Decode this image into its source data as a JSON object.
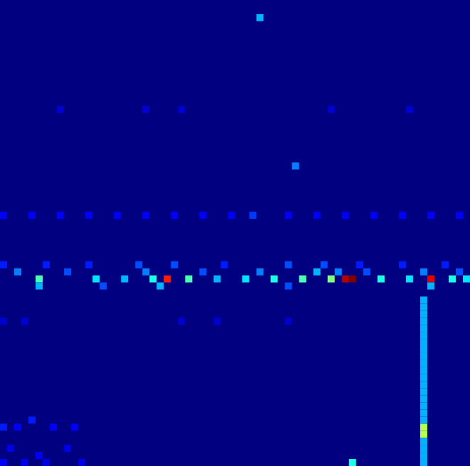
{
  "chart_data": {
    "type": "heatmap",
    "tick_labels": false,
    "xlim": [
      0,
      66
    ],
    "ylim": [
      0,
      66
    ],
    "color_range": [
      0,
      1
    ],
    "cells": [
      [
        5,
        26,
        0.45
      ],
      [
        13,
        26,
        0.35
      ],
      [
        17,
        26,
        0.3
      ],
      [
        21,
        26,
        0.4
      ],
      [
        23,
        26,
        0.85
      ],
      [
        26,
        26,
        0.45
      ],
      [
        30,
        26,
        0.3
      ],
      [
        34,
        26,
        0.35
      ],
      [
        38,
        26,
        0.4
      ],
      [
        42,
        26,
        0.45
      ],
      [
        46,
        26,
        0.5
      ],
      [
        48,
        26,
        0.95
      ],
      [
        49,
        26,
        1.0
      ],
      [
        53,
        26,
        0.4
      ],
      [
        57,
        26,
        0.35
      ],
      [
        60,
        26,
        0.9
      ],
      [
        63,
        26,
        0.4
      ],
      [
        65,
        26,
        0.35
      ],
      [
        2,
        27,
        0.25
      ],
      [
        9,
        27,
        0.2
      ],
      [
        20,
        27,
        0.25
      ],
      [
        28,
        27,
        0.2
      ],
      [
        36,
        27,
        0.25
      ],
      [
        44,
        27,
        0.3
      ],
      [
        47,
        27,
        0.25
      ],
      [
        51,
        27,
        0.2
      ],
      [
        59,
        27,
        0.25
      ],
      [
        64,
        27,
        0.2
      ],
      [
        0,
        28,
        0.15
      ],
      [
        6,
        28,
        0.15
      ],
      [
        12,
        28,
        0.15
      ],
      [
        19,
        28,
        0.2
      ],
      [
        24,
        28,
        0.2
      ],
      [
        31,
        28,
        0.15
      ],
      [
        40,
        28,
        0.2
      ],
      [
        45,
        28,
        0.2
      ],
      [
        50,
        28,
        0.15
      ],
      [
        56,
        28,
        0.15
      ],
      [
        62,
        28,
        0.15
      ],
      [
        5,
        25,
        0.3
      ],
      [
        14,
        25,
        0.2
      ],
      [
        22,
        25,
        0.3
      ],
      [
        40,
        25,
        0.2
      ],
      [
        60,
        25,
        0.3
      ],
      [
        0,
        35,
        0.12
      ],
      [
        4,
        35,
        0.12
      ],
      [
        8,
        35,
        0.12
      ],
      [
        12,
        35,
        0.12
      ],
      [
        16,
        35,
        0.12
      ],
      [
        20,
        35,
        0.12
      ],
      [
        24,
        35,
        0.12
      ],
      [
        28,
        35,
        0.12
      ],
      [
        32,
        35,
        0.12
      ],
      [
        35,
        35,
        0.18
      ],
      [
        40,
        35,
        0.12
      ],
      [
        44,
        35,
        0.12
      ],
      [
        48,
        35,
        0.12
      ],
      [
        52,
        35,
        0.12
      ],
      [
        56,
        35,
        0.12
      ],
      [
        60,
        35,
        0.12
      ],
      [
        64,
        35,
        0.12
      ],
      [
        36,
        63,
        0.3
      ],
      [
        41,
        42,
        0.25
      ],
      [
        59,
        0,
        0.3
      ],
      [
        59,
        1,
        0.3
      ],
      [
        59,
        2,
        0.3
      ],
      [
        59,
        3,
        0.3
      ],
      [
        59,
        4,
        0.55
      ],
      [
        59,
        5,
        0.55
      ],
      [
        59,
        6,
        0.3
      ],
      [
        59,
        7,
        0.3
      ],
      [
        59,
        8,
        0.3
      ],
      [
        59,
        9,
        0.3
      ],
      [
        59,
        10,
        0.3
      ],
      [
        59,
        11,
        0.3
      ],
      [
        59,
        12,
        0.3
      ],
      [
        59,
        13,
        0.3
      ],
      [
        59,
        14,
        0.3
      ],
      [
        59,
        15,
        0.3
      ],
      [
        59,
        16,
        0.3
      ],
      [
        59,
        17,
        0.3
      ],
      [
        59,
        18,
        0.3
      ],
      [
        59,
        19,
        0.3
      ],
      [
        59,
        20,
        0.3
      ],
      [
        59,
        21,
        0.3
      ],
      [
        59,
        22,
        0.3
      ],
      [
        59,
        23,
        0.3
      ],
      [
        0,
        5,
        0.15
      ],
      [
        2,
        5,
        0.12
      ],
      [
        4,
        6,
        0.15
      ],
      [
        7,
        5,
        0.12
      ],
      [
        10,
        5,
        0.12
      ],
      [
        1,
        2,
        0.1
      ],
      [
        5,
        1,
        0.12
      ],
      [
        9,
        2,
        0.1
      ],
      [
        0,
        0,
        0.12
      ],
      [
        3,
        0,
        0.1
      ],
      [
        6,
        0,
        0.1
      ],
      [
        11,
        0,
        0.1
      ],
      [
        49,
        0,
        0.4
      ],
      [
        8,
        50,
        0.08
      ],
      [
        20,
        50,
        0.08
      ],
      [
        25,
        50,
        0.08
      ],
      [
        46,
        50,
        0.08
      ],
      [
        57,
        50,
        0.08
      ],
      [
        0,
        20,
        0.08
      ],
      [
        3,
        20,
        0.08
      ],
      [
        25,
        20,
        0.08
      ],
      [
        30,
        20,
        0.08
      ],
      [
        40,
        20,
        0.08
      ]
    ]
  }
}
